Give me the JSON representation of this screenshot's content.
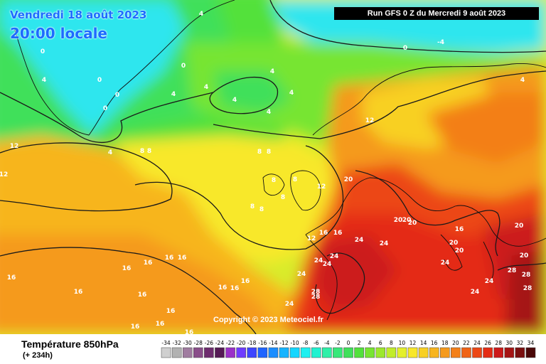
{
  "header": {
    "date": "Vendredi 18 août 2023",
    "time": "20:00 locale",
    "run": "Run GFS 0 Z du Mercredi 9 août 2023"
  },
  "copyright": "Copyright © 2023 Meteociel.fr",
  "legend": {
    "title": "Température 850hPa",
    "subtitle": "(+ 234h)",
    "ticks": [
      "-34",
      "-32",
      "-30",
      "-28",
      "-26",
      "-24",
      "-22",
      "-20",
      "-18",
      "-16",
      "-14",
      "-12",
      "-10",
      "-8",
      "-6",
      "-4",
      "-2",
      "0",
      "2",
      "4",
      "6",
      "8",
      "10",
      "12",
      "14",
      "16",
      "18",
      "20",
      "22",
      "24",
      "26",
      "28",
      "30",
      "32",
      "34"
    ],
    "colors": [
      "#cfcfcf",
      "#b2b2b2",
      "#a07ca0",
      "#8a4e8a",
      "#6e2c6e",
      "#551a55",
      "#9b30c8",
      "#6f3cff",
      "#3d45ff",
      "#1f64ff",
      "#1b8dff",
      "#16b4ff",
      "#13d6ff",
      "#1ef0f0",
      "#21f2d0",
      "#2ef0a8",
      "#37e87a",
      "#3fe05a",
      "#52e13b",
      "#77e531",
      "#9ce82c",
      "#c1ed2a",
      "#e4f02c",
      "#f8e829",
      "#f8d024",
      "#f7b51f",
      "#f59a1c",
      "#f37f19",
      "#f06316",
      "#ec4715",
      "#e42c14",
      "#cc1a1a",
      "#a51414",
      "#7a0f0f",
      "#4a0808"
    ]
  },
  "map_labels": [
    "0",
    "0",
    "0",
    "0",
    "0",
    "0",
    "0",
    "0",
    "4",
    "4",
    "4",
    "4",
    "4",
    "4",
    "4",
    "4",
    "4",
    "4",
    "-4",
    "-4",
    "8",
    "8",
    "8",
    "8",
    "8",
    "8",
    "8",
    "8",
    "8",
    "12",
    "12",
    "12",
    "12",
    "12",
    "12",
    "12",
    "16",
    "16",
    "16",
    "16",
    "16",
    "16",
    "16",
    "16",
    "16",
    "16",
    "16",
    "16",
    "16",
    "16",
    "16",
    "16",
    "16",
    "20",
    "20",
    "20",
    "20",
    "20",
    "20",
    "20",
    "20",
    "24",
    "24",
    "24",
    "24",
    "24",
    "24",
    "24",
    "24",
    "24",
    "24",
    "28",
    "28",
    "28",
    "28",
    "28"
  ],
  "icons": {
    "contour": "isotherm-line",
    "coast": "coastline"
  },
  "colors": {
    "cold_cyan": "#2ee6ee",
    "cool_green": "#3fe05a",
    "mild_yellow": "#f8e829",
    "warm_orange": "#f59a1c",
    "hot_red": "#e42c14"
  }
}
